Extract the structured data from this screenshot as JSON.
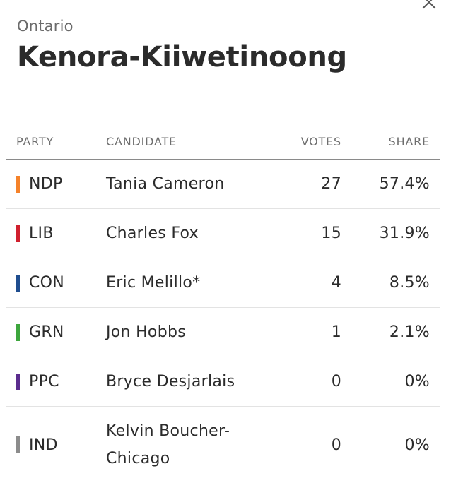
{
  "header": {
    "province": "Ontario",
    "riding": "Kenora-Kiiwetinoong"
  },
  "table": {
    "headers": {
      "party": "PARTY",
      "candidate": "CANDIDATE",
      "votes": "VOTES",
      "share": "SHARE"
    },
    "rows": [
      {
        "party": "NDP",
        "color": "#f5822a",
        "candidate": "Tania Cameron",
        "votes": "27",
        "share": "57.4%"
      },
      {
        "party": "LIB",
        "color": "#d0202e",
        "candidate": "Charles Fox",
        "votes": "15",
        "share": "31.9%"
      },
      {
        "party": "CON",
        "color": "#1f4d8f",
        "candidate": "Eric Melillo*",
        "votes": "4",
        "share": "8.5%"
      },
      {
        "party": "GRN",
        "color": "#3da63d",
        "candidate": "Jon Hobbs",
        "votes": "1",
        "share": "2.1%"
      },
      {
        "party": "PPC",
        "color": "#5b2d8e",
        "candidate": "Bryce Desjarlais",
        "votes": "0",
        "share": "0%"
      },
      {
        "party": "IND",
        "color": "#8c8c8c",
        "candidate": "Kelvin Boucher-Chicago",
        "votes": "0",
        "share": "0%"
      }
    ]
  },
  "icons": {
    "close": "close-icon"
  }
}
